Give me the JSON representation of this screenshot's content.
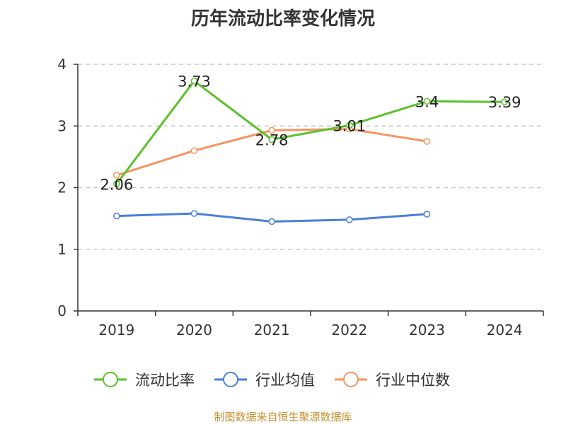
{
  "chart_data": {
    "type": "line",
    "title": "历年流动比率变化情况",
    "categories": [
      "2019",
      "2020",
      "2021",
      "2022",
      "2023",
      "2024"
    ],
    "ylim": [
      0,
      4
    ],
    "yticks": [
      0,
      1,
      2,
      3,
      4
    ],
    "grid": true,
    "legend_position": "bottom",
    "series": [
      {
        "name": "流动比率",
        "color": "#5cc12a",
        "values": [
          2.06,
          3.73,
          2.78,
          3.01,
          3.4,
          3.39
        ],
        "labels": [
          "2.06",
          "3.73",
          "2.78",
          "3.01",
          "3.4",
          "3.39"
        ]
      },
      {
        "name": "行业均值",
        "color": "#4a7fd9",
        "values": [
          1.54,
          1.58,
          1.45,
          1.48,
          1.57,
          null
        ]
      },
      {
        "name": "行业中位数",
        "color": "#f79360",
        "values": [
          2.2,
          2.6,
          2.93,
          2.95,
          2.75,
          null
        ]
      }
    ],
    "source": "制图数据来自恒生聚源数据库"
  }
}
